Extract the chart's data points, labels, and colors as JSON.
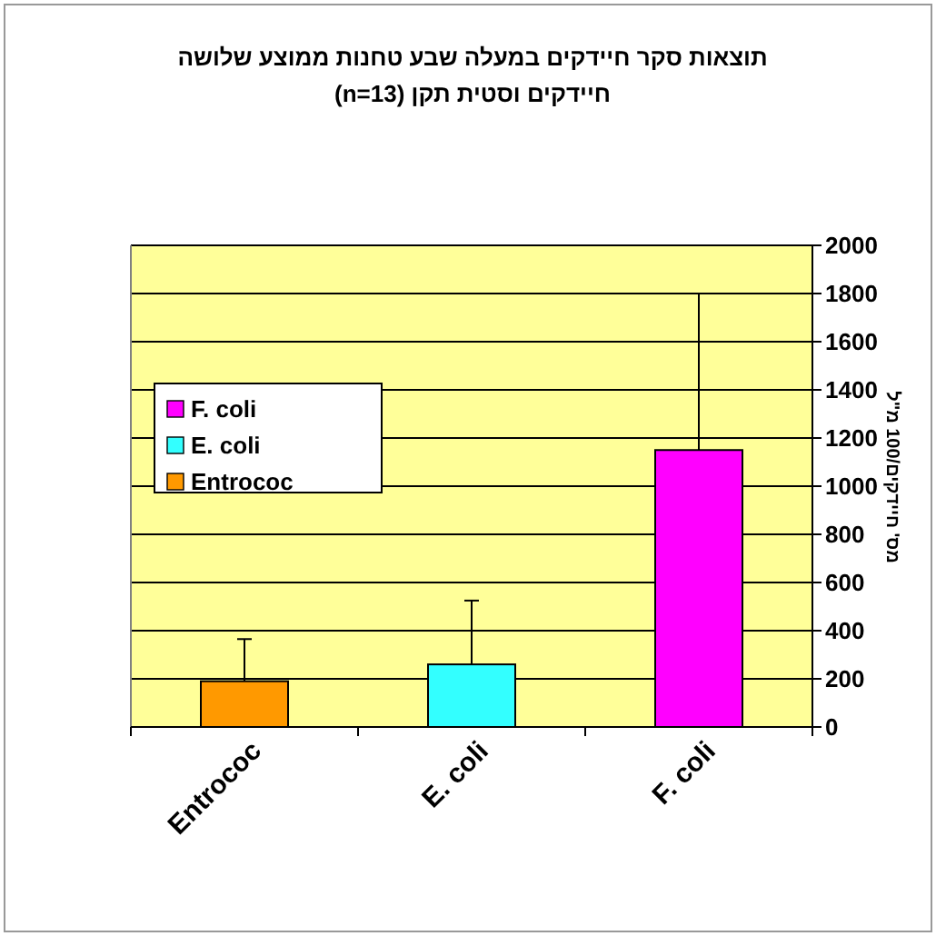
{
  "chart_data": {
    "type": "bar",
    "title": "תוצאות סקר חיידקים במעלה שבע טחנות ממוצע שלושה חיידקים וסטית תקן (n=13)",
    "ylabel": "מס' חיידקים/100 מ\"ל",
    "categories": [
      "Entrococ",
      "E. coli",
      "F. coli"
    ],
    "series": [
      {
        "name": "Entrococ",
        "color": "#ff9900",
        "values": [
          190,
          null,
          null
        ],
        "errors": [
          175,
          null,
          null
        ]
      },
      {
        "name": "E. coli",
        "color": "#33ffff",
        "values": [
          null,
          260,
          null
        ],
        "errors": [
          null,
          265,
          null
        ]
      },
      {
        "name": "F. coli",
        "color": "#ff00ff",
        "values": [
          null,
          null,
          1150
        ],
        "errors": [
          null,
          null,
          650
        ]
      }
    ],
    "ylim": [
      0,
      2000
    ],
    "yticks": [
      0,
      200,
      400,
      600,
      800,
      1000,
      1200,
      1400,
      1600,
      1800,
      2000
    ],
    "grid": "y",
    "legend": "left"
  }
}
